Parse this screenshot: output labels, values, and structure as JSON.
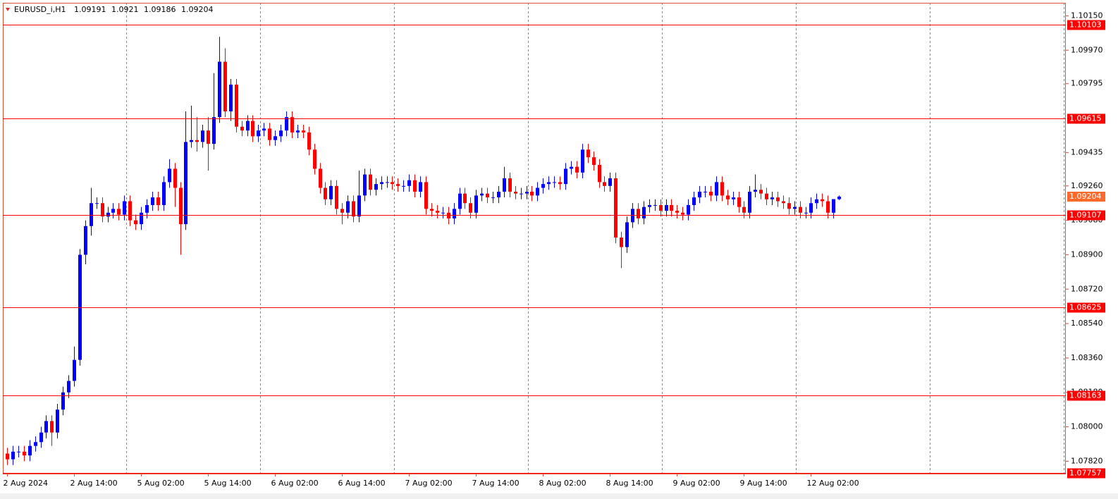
{
  "chart_data": {
    "type": "candlestick",
    "symbol": "EURUSD_i,H1",
    "up_color": "#0000ff",
    "down_color": "#ff0000",
    "level_color": "#ff0000",
    "ylim": [
      1.07755,
      1.10218
    ],
    "yticks": [
      {
        "value": 1.1015,
        "label": "1.10150"
      },
      {
        "value": 1.0997,
        "label": "1.09970"
      },
      1.09795,
      {
        "value": 1.0943500000000002,
        "label": "1.09435"
      },
      {
        "value": 1.0926,
        "label": "1.09260"
      },
      {
        "value": 1.0908,
        "label": "1.09080"
      },
      {
        "value": 1.089,
        "label": "1.08900"
      },
      {
        "value": 1.0872,
        "label": "1.08720"
      },
      {
        "value": 1.0854,
        "label": "1.08540"
      },
      {
        "value": 1.0836,
        "label": "1.08360"
      },
      {
        "value": 1.0818,
        "label": "1.08180"
      },
      {
        "value": 1.08,
        "label": "1.08000"
      },
      {
        "value": 1.0782,
        "label": "1.07820"
      }
    ],
    "levels": [
      1.10103,
      1.09615,
      1.09107,
      1.08625,
      1.08163,
      1.07757
    ],
    "categories": [
      "2 Aug 2024",
      null,
      null,
      null,
      null,
      null,
      null,
      null,
      null,
      null,
      null,
      null,
      "2 Aug 14:00",
      null,
      null,
      null,
      null,
      null,
      null,
      null,
      null,
      null,
      null,
      null,
      "5 Aug 02:00",
      null,
      null,
      null,
      null,
      null,
      null,
      null,
      null,
      null,
      null,
      null,
      "5 Aug 14:00",
      null,
      null,
      null,
      null,
      null,
      null,
      null,
      null,
      null,
      null,
      null,
      "6 Aug 02:00",
      null,
      null,
      null,
      null,
      null,
      null,
      null,
      null,
      null,
      null,
      null,
      "6 Aug 14:00",
      null,
      null,
      null,
      null,
      null,
      null,
      null,
      null,
      null,
      null,
      null,
      "7 Aug 02:00",
      null,
      null,
      null,
      null,
      null,
      null,
      null,
      null,
      null,
      null,
      null,
      "7 Aug 14:00",
      null,
      null,
      null,
      null,
      null,
      null,
      null,
      null,
      null,
      null,
      null,
      "8 Aug 02:00",
      null,
      null,
      null,
      null,
      null,
      null,
      null,
      null,
      null,
      null,
      null,
      "8 Aug 14:00",
      null,
      null,
      null,
      null,
      null,
      null,
      null,
      null,
      null,
      null,
      null,
      "9 Aug 02:00",
      null,
      null,
      null,
      null,
      null,
      null,
      null,
      null,
      null,
      null,
      null,
      "9 Aug 14:00",
      null,
      null,
      null,
      null,
      null,
      null,
      null,
      null,
      null,
      null,
      null,
      "12 Aug 02:00",
      null,
      null,
      null,
      null,
      null
    ],
    "open": [
      1.0786,
      1.0783,
      1.0787,
      1.0787,
      1.0785,
      1.079,
      1.0792,
      1.0797,
      1.0803,
      1.0797,
      1.0809,
      1.0818,
      1.0824,
      1.0835,
      1.089,
      1.0905,
      1.0917,
      1.0917,
      1.091,
      1.0912,
      1.0914,
      1.0911,
      1.0918,
      1.0908,
      1.0906,
      1.0912,
      1.0916,
      1.092,
      1.0916,
      1.0928,
      1.0935,
      1.0925,
      1.0906,
      1.0949,
      1.095,
      1.0949,
      1.0955,
      1.0948,
      1.0962,
      1.0991,
      1.0965,
      1.0979,
      1.0957,
      1.0955,
      1.096,
      1.0952,
      1.0955,
      1.0956,
      1.095,
      1.0952,
      1.0955,
      1.0962,
      1.0954,
      1.0955,
      1.0954,
      1.0945,
      1.0935,
      1.0925,
      1.0919,
      1.0926,
      1.0914,
      1.0912,
      1.0918,
      1.091,
      1.0921,
      1.0932,
      1.0924,
      1.0927,
      1.0928,
      1.0928,
      1.0927,
      1.0926,
      1.0926,
      1.0929,
      1.0923,
      1.0928,
      1.0914,
      1.0913,
      1.0912,
      1.0912,
      1.0909,
      1.0914,
      1.0922,
      1.0917,
      1.0912,
      1.0921,
      1.0922,
      1.092,
      1.092,
      1.0923,
      1.093,
      1.0923,
      1.0922,
      1.0922,
      1.0923,
      1.0921,
      1.0925,
      1.0927,
      1.0928,
      1.0928,
      1.0927,
      1.0935,
      1.0936,
      1.0933,
      1.0945,
      1.0941,
      1.0937,
      1.0928,
      1.0926,
      1.093,
      1.0899,
      1.0894,
      1.0907,
      1.0914,
      1.0909,
      1.0915,
      1.0916,
      1.0916,
      1.0913,
      1.0916,
      1.0913,
      1.0912,
      1.0911,
      1.0916,
      1.092,
      1.0923,
      1.0923,
      1.0921,
      1.0928,
      1.0921,
      1.0919,
      1.092,
      1.0915,
      1.0912,
      1.0923,
      1.0924,
      1.0922,
      1.0919,
      1.092,
      1.0918,
      1.0917,
      1.0914,
      1.0915,
      1.0912,
      1.0912,
      1.0917,
      1.0919,
      1.0918,
      1.0912,
      1.09191
    ],
    "high": [
      1.0789,
      1.079,
      1.079,
      1.079,
      1.0793,
      1.0795,
      1.08,
      1.0806,
      1.0806,
      1.0812,
      1.0821,
      1.0827,
      1.0842,
      1.0893,
      1.0908,
      1.0925,
      1.092,
      1.092,
      1.0915,
      1.0917,
      1.0917,
      1.0921,
      1.0921,
      1.0911,
      1.0915,
      1.0919,
      1.0923,
      1.0923,
      1.0931,
      1.094,
      1.0938,
      1.0928,
      1.0965,
      1.0968,
      1.0962,
      1.0958,
      1.0962,
      1.0985,
      1.1004,
      1.0998,
      1.0982,
      1.0982,
      1.096,
      1.0963,
      1.0963,
      1.0958,
      1.0959,
      1.0959,
      1.0955,
      1.0958,
      1.0965,
      1.0965,
      1.0958,
      1.0958,
      1.0957,
      1.0948,
      1.0938,
      1.0928,
      1.0929,
      1.0929,
      1.0917,
      1.0921,
      1.0921,
      1.0934,
      1.0935,
      1.0935,
      1.093,
      1.0931,
      1.0931,
      1.0931,
      1.093,
      1.0929,
      1.0932,
      1.0932,
      1.0931,
      1.0931,
      1.0917,
      1.0916,
      1.0915,
      1.0915,
      1.0917,
      1.0925,
      1.0925,
      1.092,
      1.0924,
      1.0925,
      1.0925,
      1.0923,
      1.0926,
      1.0936,
      1.0933,
      1.0926,
      1.0925,
      1.0926,
      1.0926,
      1.0928,
      1.093,
      1.0931,
      1.0931,
      1.0931,
      1.0938,
      1.0939,
      1.0939,
      1.0948,
      1.0948,
      1.0944,
      1.094,
      1.0931,
      1.0933,
      1.0933,
      1.0902,
      1.091,
      1.0917,
      1.0917,
      1.0918,
      1.0919,
      1.0919,
      1.0919,
      1.0919,
      1.0919,
      1.0916,
      1.0915,
      1.0919,
      1.0923,
      1.0926,
      1.0926,
      1.0926,
      1.0931,
      1.0931,
      1.0924,
      1.0923,
      1.0923,
      1.0918,
      1.0926,
      1.0932,
      1.0927,
      1.0925,
      1.0923,
      1.0923,
      1.0921,
      1.092,
      1.0918,
      1.0918,
      1.0915,
      1.092,
      1.0922,
      1.0922,
      1.0921,
      1.0918,
      1.0921
    ],
    "low": [
      1.078,
      1.078,
      1.0784,
      1.0782,
      1.0782,
      1.0787,
      1.0789,
      1.0794,
      1.079,
      1.0794,
      1.0806,
      1.0815,
      1.0821,
      1.0832,
      1.0885,
      1.09,
      1.0914,
      1.0907,
      1.0907,
      1.0909,
      1.0908,
      1.0908,
      1.0905,
      1.0903,
      1.0903,
      1.0909,
      1.0913,
      1.0913,
      1.0913,
      1.0925,
      1.0915,
      1.089,
      1.0903,
      1.0946,
      1.0944,
      1.0946,
      1.0934,
      1.0945,
      1.0959,
      1.0962,
      1.096,
      1.0954,
      1.0952,
      1.0952,
      1.0949,
      1.0949,
      1.0952,
      1.0947,
      1.0947,
      1.0949,
      1.0952,
      1.0951,
      1.0951,
      1.0951,
      1.0942,
      1.0932,
      1.0922,
      1.0916,
      1.0916,
      1.0911,
      1.0906,
      1.0909,
      1.0907,
      1.0907,
      1.0918,
      1.0921,
      1.0921,
      1.0924,
      1.0925,
      1.0924,
      1.0923,
      1.0923,
      1.0923,
      1.092,
      1.092,
      1.0911,
      1.091,
      1.0909,
      1.0909,
      1.0906,
      1.0906,
      1.0911,
      1.0914,
      1.0909,
      1.0909,
      1.0918,
      1.0917,
      1.0917,
      1.0917,
      1.092,
      1.092,
      1.0919,
      1.0919,
      1.0919,
      1.0918,
      1.0918,
      1.0922,
      1.0924,
      1.0925,
      1.0924,
      1.0924,
      1.0932,
      1.093,
      1.093,
      1.0938,
      1.0934,
      1.0925,
      1.0923,
      1.0923,
      1.0896,
      1.0883,
      1.0891,
      1.0904,
      1.0906,
      1.0906,
      1.0912,
      1.0913,
      1.091,
      1.091,
      1.091,
      1.0909,
      1.0908,
      1.0908,
      1.0913,
      1.0917,
      1.092,
      1.0918,
      1.0918,
      1.0918,
      1.0916,
      1.0916,
      1.0912,
      1.0909,
      1.0909,
      1.092,
      1.0919,
      1.0916,
      1.0916,
      1.0915,
      1.0914,
      1.0911,
      1.0911,
      1.0909,
      1.0909,
      1.0909,
      1.0914,
      1.0915,
      1.0909,
      1.0909,
      1.09186
    ],
    "close": [
      1.0783,
      1.0787,
      1.0787,
      1.0785,
      1.079,
      1.0792,
      1.0797,
      1.0803,
      1.0797,
      1.0809,
      1.0818,
      1.0824,
      1.0835,
      1.089,
      1.0905,
      1.0917,
      1.0917,
      1.091,
      1.0912,
      1.0914,
      1.0911,
      1.0918,
      1.0908,
      1.0906,
      1.0912,
      1.0916,
      1.092,
      1.0916,
      1.0928,
      1.0935,
      1.0925,
      1.0906,
      1.0949,
      1.095,
      1.0949,
      1.0955,
      1.0948,
      1.0962,
      1.0991,
      1.0965,
      1.0979,
      1.0957,
      1.0955,
      1.096,
      1.0952,
      1.0955,
      1.0956,
      1.095,
      1.0952,
      1.0955,
      1.0962,
      1.0954,
      1.0955,
      1.0954,
      1.0945,
      1.0935,
      1.0925,
      1.0919,
      1.0926,
      1.0914,
      1.0912,
      1.0918,
      1.091,
      1.0921,
      1.0932,
      1.0924,
      1.0927,
      1.0928,
      1.0928,
      1.0927,
      1.0926,
      1.0926,
      1.0929,
      1.0923,
      1.0928,
      1.0914,
      1.0913,
      1.0912,
      1.0912,
      1.0909,
      1.0914,
      1.0922,
      1.0917,
      1.0912,
      1.0921,
      1.0922,
      1.092,
      1.092,
      1.0923,
      1.093,
      1.0923,
      1.0922,
      1.0922,
      1.0923,
      1.0921,
      1.0925,
      1.0927,
      1.0928,
      1.0928,
      1.0927,
      1.0935,
      1.0936,
      1.0933,
      1.0945,
      1.0941,
      1.0937,
      1.0928,
      1.0926,
      1.093,
      1.0899,
      1.0894,
      1.0907,
      1.0914,
      1.0909,
      1.0915,
      1.0916,
      1.0916,
      1.0913,
      1.0916,
      1.0913,
      1.0912,
      1.0911,
      1.0916,
      1.092,
      1.0923,
      1.0923,
      1.0921,
      1.0928,
      1.0921,
      1.0919,
      1.092,
      1.0915,
      1.0912,
      1.0923,
      1.0924,
      1.0922,
      1.0919,
      1.092,
      1.0918,
      1.0917,
      1.0914,
      1.0915,
      1.0912,
      1.0912,
      1.0917,
      1.0919,
      1.0918,
      1.0912,
      1.09191,
      1.09204
    ]
  }
}
